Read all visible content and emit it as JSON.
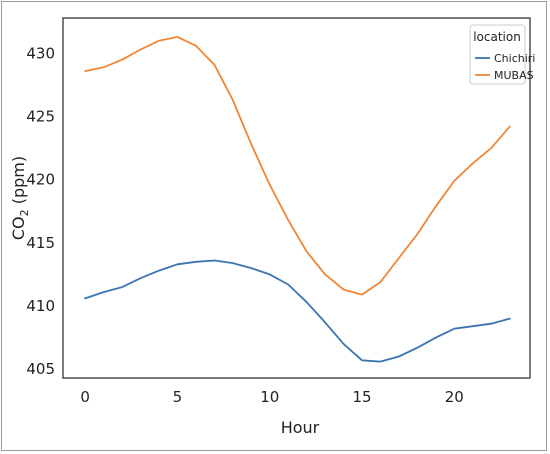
{
  "chart_data": {
    "type": "line",
    "xlabel": "Hour",
    "ylabel_main": "CO",
    "ylabel_sub": "2",
    "ylabel_unit": " (ppm)",
    "xlim": [
      -1.2,
      24.1
    ],
    "ylim": [
      404.3,
      432.8
    ],
    "xticks": [
      0,
      5,
      10,
      15,
      20
    ],
    "yticks": [
      405,
      410,
      415,
      420,
      425,
      430
    ],
    "grid": false,
    "legend": {
      "title": "location",
      "placement": "top-right"
    },
    "x": [
      0,
      1,
      2,
      3,
      4,
      5,
      6,
      7,
      8,
      9,
      10,
      11,
      12,
      13,
      14,
      15,
      16,
      17,
      18,
      19,
      20,
      21,
      22,
      23
    ],
    "series": [
      {
        "name": "Chichiri",
        "color": "#3a75af",
        "values": [
          410.6,
          411.1,
          411.5,
          412.2,
          412.8,
          413.3,
          413.5,
          413.6,
          413.4,
          413.0,
          412.5,
          411.7,
          410.3,
          408.7,
          407.0,
          405.7,
          405.6,
          406.0,
          406.7,
          407.5,
          408.2,
          408.4,
          408.6,
          409.0
        ]
      },
      {
        "name": "MUBAS",
        "color": "#ef8636",
        "values": [
          428.6,
          428.9,
          429.5,
          430.3,
          431.0,
          431.3,
          430.6,
          429.1,
          426.3,
          422.8,
          419.6,
          416.8,
          414.3,
          412.5,
          411.3,
          410.9,
          411.9,
          413.8,
          415.7,
          417.9,
          419.9,
          421.3,
          422.5,
          424.2
        ]
      }
    ]
  }
}
